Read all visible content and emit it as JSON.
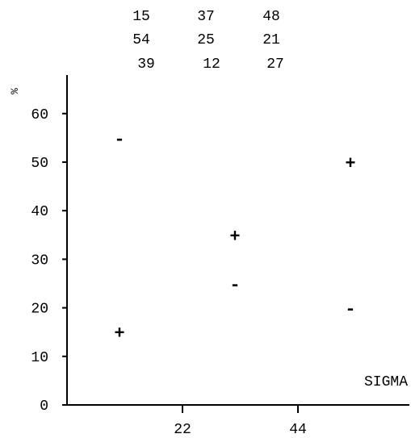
{
  "number_grid": [
    [
      "15",
      "37",
      "48"
    ],
    [
      "54",
      "25",
      "21"
    ],
    [
      "39",
      "12",
      "27"
    ]
  ],
  "chart_data": {
    "type": "scatter",
    "title": "",
    "xlabel": "SIGMA",
    "ylabel": "%",
    "xticks": [
      "22",
      "44"
    ],
    "xlim": [
      0,
      66
    ],
    "yticks": [
      "0",
      "10",
      "20",
      "30",
      "40",
      "50",
      "60"
    ],
    "ylim": [
      0,
      66
    ],
    "grid": false,
    "points": [
      {
        "x": 10,
        "y": 15,
        "marker": "+"
      },
      {
        "x": 10,
        "y": 55,
        "marker": "-"
      },
      {
        "x": 32,
        "y": 35,
        "marker": "+"
      },
      {
        "x": 32,
        "y": 25,
        "marker": "-"
      },
      {
        "x": 54,
        "y": 50,
        "marker": "+"
      },
      {
        "x": 54,
        "y": 20,
        "marker": "-"
      }
    ]
  }
}
